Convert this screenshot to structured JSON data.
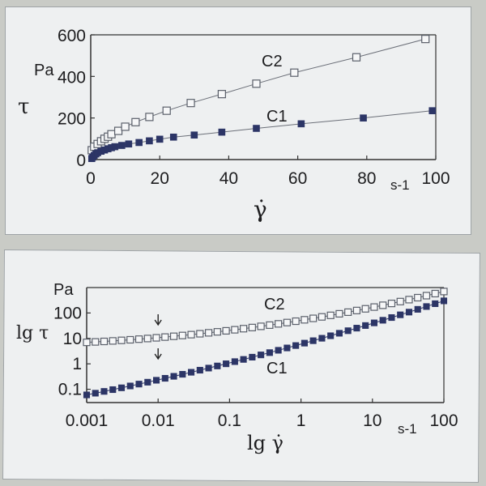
{
  "chart_data": [
    {
      "type": "scatter",
      "xlabel": "γ̇",
      "ylabel": "τ",
      "y_unit": "Pa",
      "x_unit": "s-1",
      "xlim": [
        0,
        100
      ],
      "ylim": [
        0,
        600
      ],
      "x_ticks": [
        "0",
        "20",
        "40",
        "60",
        "80",
        "100"
      ],
      "y_ticks": [
        "0",
        "200",
        "400",
        "600"
      ],
      "series": [
        {
          "name": "C2",
          "marker": "open-square",
          "color": "#5a5f6a",
          "x": [
            0.3,
            1,
            2,
            3,
            4,
            5,
            6,
            8,
            10,
            13,
            17,
            22,
            29,
            38,
            48,
            59,
            77,
            97
          ],
          "y": [
            45,
            62,
            75,
            88,
            100,
            110,
            122,
            138,
            158,
            180,
            205,
            235,
            272,
            315,
            365,
            418,
            492,
            580
          ]
        },
        {
          "name": "C1",
          "marker": "filled-square",
          "color": "#2c3566",
          "x": [
            0.3,
            0.6,
            1,
            1.5,
            2,
            3,
            4,
            5,
            6,
            7,
            9,
            11,
            14,
            17,
            20,
            24,
            30,
            38,
            48,
            61,
            79,
            99
          ],
          "y": [
            5,
            12,
            20,
            27,
            33,
            40,
            46,
            52,
            57,
            62,
            68,
            75,
            82,
            90,
            98,
            108,
            118,
            132,
            150,
            172,
            200,
            235
          ]
        }
      ]
    },
    {
      "type": "scatter",
      "xlabel": "lg γ̇",
      "ylabel": "lg τ",
      "y_unit": "Pa",
      "x_unit": "s-1",
      "xscale": "log",
      "yscale": "log",
      "xlim": [
        0.001,
        100
      ],
      "ylim": [
        0.03,
        1000
      ],
      "x_ticks": [
        "0.001",
        "0.01",
        "0.1",
        "1",
        "10",
        "100"
      ],
      "y_ticks": [
        "0.1",
        "1",
        "10",
        "100"
      ],
      "arrow_x": 0.01,
      "series": [
        {
          "name": "C2",
          "marker": "open-square",
          "color": "#5a5f6a",
          "x_range": [
            0.001,
            100
          ],
          "points": 42,
          "y_start": 7,
          "y_end": 700
        },
        {
          "name": "C1",
          "marker": "filled-square",
          "color": "#2c3566",
          "x_range": [
            0.001,
            100
          ],
          "points": 42,
          "y_start": 0.06,
          "y_end": 300
        }
      ]
    }
  ]
}
